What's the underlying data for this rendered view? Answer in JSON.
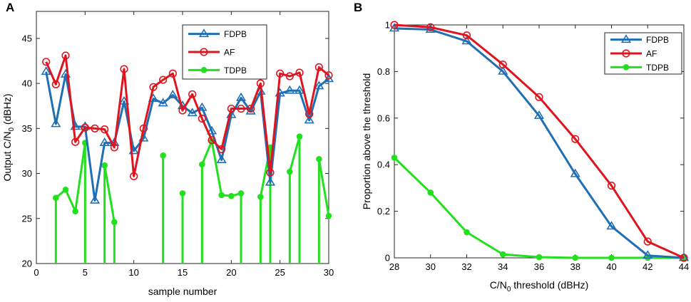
{
  "chart_data": [
    {
      "panel": "A",
      "type": "line",
      "title": "",
      "xlabel": "sample number",
      "ylabel_parts": [
        "Output C/N",
        "0",
        " (dBHz)"
      ],
      "xlim": [
        0,
        30
      ],
      "ylim": [
        20,
        48
      ],
      "xticks": [
        0,
        5,
        10,
        15,
        20,
        25,
        30
      ],
      "yticks": [
        20,
        25,
        30,
        35,
        40,
        45
      ],
      "grid": false,
      "legend_position": "top-right",
      "x": [
        1,
        2,
        3,
        4,
        5,
        6,
        7,
        8,
        9,
        10,
        11,
        12,
        13,
        14,
        15,
        16,
        17,
        18,
        19,
        20,
        21,
        22,
        23,
        24,
        25,
        26,
        27,
        28,
        29,
        30
      ],
      "series": [
        {
          "name": "FDPB",
          "color": "#1f6fb5",
          "marker": "triangle",
          "values": [
            41.3,
            35.5,
            41.0,
            35.2,
            35.2,
            27.0,
            33.4,
            33.4,
            38.0,
            32.5,
            33.9,
            38.3,
            37.8,
            38.7,
            37.5,
            36.7,
            37.3,
            34.7,
            31.5,
            36.5,
            38.4,
            36.9,
            39.1,
            29.0,
            38.9,
            39.2,
            39.2,
            35.9,
            39.7,
            40.5
          ]
        },
        {
          "name": "AF",
          "color": "#e0141e",
          "marker": "circle",
          "values": [
            42.4,
            39.9,
            43.1,
            33.5,
            35.1,
            35.0,
            34.9,
            32.9,
            41.6,
            29.7,
            35.0,
            39.6,
            40.4,
            41.1,
            37.0,
            38.8,
            36.1,
            33.7,
            32.7,
            37.2,
            37.2,
            37.2,
            40.0,
            30.1,
            41.1,
            40.8,
            41.2,
            36.6,
            41.8,
            40.9
          ]
        },
        {
          "name": "TDPB",
          "color": "#22e01e",
          "marker": "dot",
          "values": [
            null,
            27.3,
            28.2,
            25.8,
            33.4,
            null,
            30.9,
            24.6,
            null,
            null,
            null,
            null,
            32.0,
            null,
            27.8,
            null,
            31.0,
            33.6,
            27.6,
            27.5,
            27.8,
            null,
            27.4,
            32.9,
            null,
            30.2,
            34.1,
            null,
            31.6,
            25.3
          ],
          "stems_to_floor_at": [
            2,
            5,
            7,
            8,
            13,
            15,
            17,
            21,
            23,
            24,
            26,
            27,
            29
          ]
        }
      ]
    },
    {
      "panel": "B",
      "type": "line",
      "title": "",
      "xlabel_parts": [
        "C/N",
        "0",
        " threshold (dBHz)"
      ],
      "ylabel": "Proportion above the threshold",
      "xlim": [
        28,
        44
      ],
      "ylim": [
        0,
        1
      ],
      "xticks": [
        28,
        30,
        32,
        34,
        36,
        38,
        40,
        42,
        44
      ],
      "yticks": [
        0,
        0.2,
        0.4,
        0.6,
        0.8,
        1
      ],
      "ytick_labels": [
        "0",
        "0.2",
        "0.4",
        "0.6",
        "0.8",
        "1"
      ],
      "grid": false,
      "legend_position": "top-right",
      "x": [
        28,
        30,
        32,
        34,
        36,
        38,
        40,
        42,
        44
      ],
      "series": [
        {
          "name": "FDPB",
          "color": "#1f6fb5",
          "marker": "triangle",
          "values": [
            0.985,
            0.98,
            0.93,
            0.8,
            0.61,
            0.36,
            0.135,
            0.01,
            0.0
          ]
        },
        {
          "name": "AF",
          "color": "#e0141e",
          "marker": "circle",
          "values": [
            1.0,
            0.99,
            0.955,
            0.83,
            0.69,
            0.51,
            0.31,
            0.07,
            0.0
          ]
        },
        {
          "name": "TDPB",
          "color": "#22e01e",
          "marker": "dot",
          "values": [
            0.43,
            0.28,
            0.11,
            0.015,
            0.003,
            0.0,
            0.0,
            0.0,
            0.0
          ]
        }
      ]
    }
  ]
}
